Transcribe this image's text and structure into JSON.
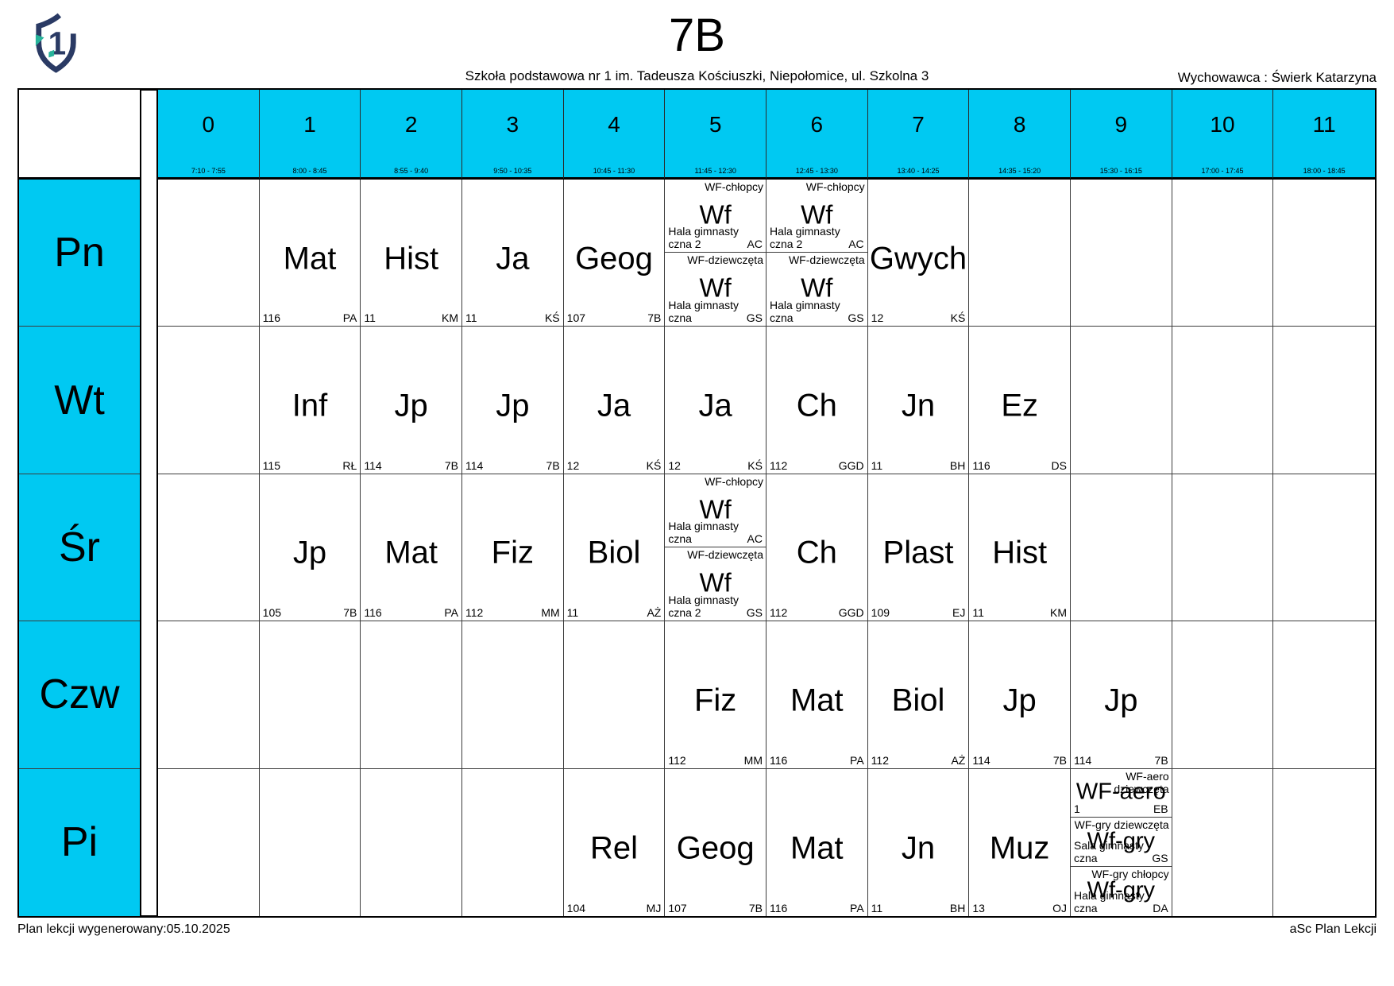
{
  "header": {
    "title": "7B",
    "subtitle": "Szkoła podstawowa nr 1 im. Tadeusza Kościuszki, Niepołomice, ul. Szkolna 3",
    "homeroom": "Wychowawca : Świerk Katarzyna",
    "logo_number": "1"
  },
  "colors": {
    "header_bg": "#00c9f2",
    "logo_navy": "#2a3a64",
    "logo_teal": "#27b39a"
  },
  "periods": [
    {
      "num": "0",
      "time": "7:10 - 7:55"
    },
    {
      "num": "1",
      "time": "8:00 - 8:45"
    },
    {
      "num": "2",
      "time": "8:55 - 9:40"
    },
    {
      "num": "3",
      "time": "9:50 - 10:35"
    },
    {
      "num": "4",
      "time": "10:45 - 11:30"
    },
    {
      "num": "5",
      "time": "11:45 - 12:30"
    },
    {
      "num": "6",
      "time": "12:45 - 13:30"
    },
    {
      "num": "7",
      "time": "13:40 - 14:25"
    },
    {
      "num": "8",
      "time": "14:35 - 15:20"
    },
    {
      "num": "9",
      "time": "15:30 - 16:15"
    },
    {
      "num": "10",
      "time": "17:00 - 17:45"
    },
    {
      "num": "11",
      "time": "18:00 - 18:45"
    }
  ],
  "timetable": {
    "rows": [
      {
        "day": "Pn",
        "cells": {
          "1": {
            "subject": "Mat",
            "room": "116",
            "teacher": "PA"
          },
          "2": {
            "subject": "Hist",
            "room": "11",
            "teacher": "KM"
          },
          "3": {
            "subject": "Ja",
            "room": "11",
            "teacher": "KŚ"
          },
          "4": {
            "subject": "Geog",
            "room": "107",
            "teacher": "7B"
          },
          "5": {
            "groups": [
              {
                "label": "WF-chłopcy",
                "subject": "Wf",
                "room": "Hala gimnastyczna 2",
                "teacher": "AC"
              },
              {
                "label": "WF-dziewczęta",
                "subject": "Wf",
                "room": "Hala gimnastyczna",
                "teacher": "GS"
              }
            ]
          },
          "6": {
            "groups": [
              {
                "label": "WF-chłopcy",
                "subject": "Wf",
                "room": "Hala gimnastyczna 2",
                "teacher": "AC"
              },
              {
                "label": "WF-dziewczęta",
                "subject": "Wf",
                "room": "Hala gimnastyczna",
                "teacher": "GS"
              }
            ]
          },
          "7": {
            "subject": "Gwych",
            "room": "12",
            "teacher": "KŚ"
          }
        }
      },
      {
        "day": "Wt",
        "cells": {
          "1": {
            "subject": "Inf",
            "room": "115",
            "teacher": "RŁ"
          },
          "2": {
            "subject": "Jp",
            "room": "114",
            "teacher": "7B"
          },
          "3": {
            "subject": "Jp",
            "room": "114",
            "teacher": "7B"
          },
          "4": {
            "subject": "Ja",
            "room": "12",
            "teacher": "KŚ"
          },
          "5": {
            "subject": "Ja",
            "room": "12",
            "teacher": "KŚ"
          },
          "6": {
            "subject": "Ch",
            "room": "112",
            "teacher": "GGD"
          },
          "7": {
            "subject": "Jn",
            "room": "11",
            "teacher": "BH"
          },
          "8": {
            "subject": "Ez",
            "room": "116",
            "teacher": "DS"
          }
        }
      },
      {
        "day": "Śr",
        "cells": {
          "1": {
            "subject": "Jp",
            "room": "105",
            "teacher": "7B"
          },
          "2": {
            "subject": "Mat",
            "room": "116",
            "teacher": "PA"
          },
          "3": {
            "subject": "Fiz",
            "room": "112",
            "teacher": "MM"
          },
          "4": {
            "subject": "Biol",
            "room": "11",
            "teacher": "AŻ"
          },
          "5": {
            "groups": [
              {
                "label": "WF-chłopcy",
                "subject": "Wf",
                "room": "Hala gimnastyczna",
                "teacher": "AC"
              },
              {
                "label": "WF-dziewczęta",
                "subject": "Wf",
                "room": "Hala gimnastyczna 2",
                "teacher": "GS"
              }
            ]
          },
          "6": {
            "subject": "Ch",
            "room": "112",
            "teacher": "GGD"
          },
          "7": {
            "subject": "Plast",
            "room": "109",
            "teacher": "EJ"
          },
          "8": {
            "subject": "Hist",
            "room": "11",
            "teacher": "KM"
          }
        }
      },
      {
        "day": "Czw",
        "cells": {
          "5": {
            "subject": "Fiz",
            "room": "112",
            "teacher": "MM"
          },
          "6": {
            "subject": "Mat",
            "room": "116",
            "teacher": "PA"
          },
          "7": {
            "subject": "Biol",
            "room": "112",
            "teacher": "AŻ"
          },
          "8": {
            "subject": "Jp",
            "room": "114",
            "teacher": "7B"
          },
          "9": {
            "subject": "Jp",
            "room": "114",
            "teacher": "7B"
          }
        }
      },
      {
        "day": "Pi",
        "cells": {
          "4": {
            "subject": "Rel",
            "room": "104",
            "teacher": "MJ"
          },
          "5": {
            "subject": "Geog",
            "room": "107",
            "teacher": "7B"
          },
          "6": {
            "subject": "Mat",
            "room": "116",
            "teacher": "PA"
          },
          "7": {
            "subject": "Jn",
            "room": "11",
            "teacher": "BH"
          },
          "8": {
            "subject": "Muz",
            "room": "13",
            "teacher": "OJ"
          },
          "9": {
            "groups": [
              {
                "label": "WF-aero dziewczęta",
                "subject": "WF-aero",
                "room": "1",
                "teacher": "EB"
              },
              {
                "label": "WF-gry dziewczęta",
                "subject": "Wf-gry",
                "room": "Sala gimnastyczna",
                "teacher": "GS"
              },
              {
                "label": "WF-gry chłopcy",
                "subject": "Wf-gry",
                "room": "Hala gimnastyczna",
                "teacher": "DA"
              }
            ]
          }
        }
      }
    ]
  },
  "footer": {
    "generated": "Plan lekcji wygenerowany:05.10.2025",
    "brand": "aSc Plan Lekcji"
  }
}
